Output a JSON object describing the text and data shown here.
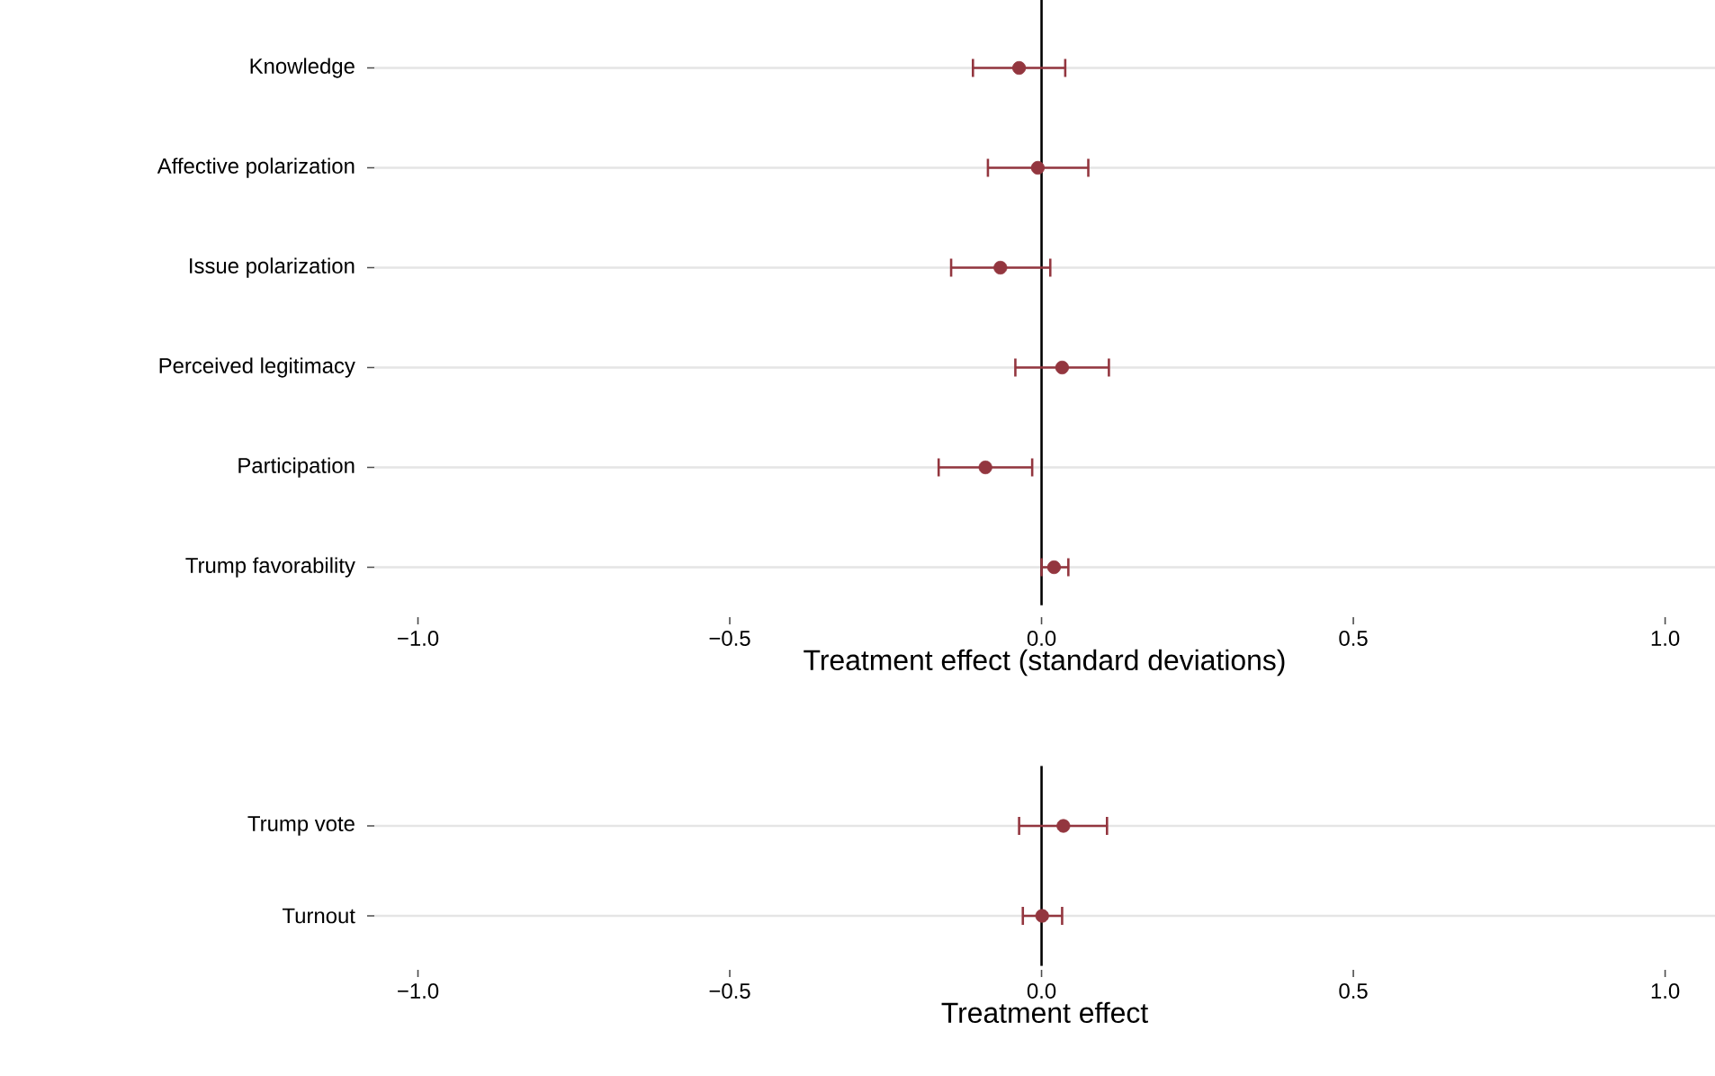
{
  "chart_data": [
    {
      "type": "scatter",
      "orientation": "horizontal",
      "categories": [
        "Knowledge",
        "Affective polarization",
        "Issue polarization",
        "Perceived legitimacy",
        "Participation",
        "Trump favorability"
      ],
      "values": [
        -0.036,
        -0.006,
        -0.066,
        0.033,
        -0.09,
        0.02
      ],
      "errors": [
        [
          -0.11,
          0.038
        ],
        [
          -0.086,
          0.075
        ],
        [
          -0.145,
          0.014
        ],
        [
          -0.042,
          0.108
        ],
        [
          -0.165,
          -0.015
        ],
        [
          0.0,
          0.043
        ]
      ],
      "color": "#93363f",
      "marker": "circle",
      "grid": "y",
      "xlim": [
        -1.07,
        1.08
      ],
      "xticks": [
        {
          "value": -1,
          "label": "−1.0"
        },
        {
          "value": -0.5,
          "label": "−0.5"
        },
        {
          "value": 0,
          "label": "0.0"
        },
        {
          "value": 0.5,
          "label": "0.5"
        },
        {
          "value": 1,
          "label": "1.0"
        }
      ],
      "xlabel": "Treatment effect (standard deviations)",
      "ref_lines": [
        {
          "axis": "x",
          "value": 0,
          "color": "#000000"
        }
      ]
    },
    {
      "type": "scatter",
      "orientation": "horizontal",
      "categories": [
        "Trump vote",
        "Turnout"
      ],
      "values": [
        0.035,
        0.001
      ],
      "errors": [
        [
          -0.036,
          0.105
        ],
        [
          -0.03,
          0.033
        ]
      ],
      "color": "#93363f",
      "marker": "circle",
      "grid": "y",
      "xlim": [
        -1.07,
        1.08
      ],
      "xticks": [
        {
          "value": -1,
          "label": "−1.0"
        },
        {
          "value": -0.5,
          "label": "−0.5"
        },
        {
          "value": 0,
          "label": "0.0"
        },
        {
          "value": 0.5,
          "label": "0.5"
        },
        {
          "value": 1,
          "label": "1.0"
        }
      ],
      "xlabel": "Treatment effect",
      "ref_lines": [
        {
          "axis": "x",
          "value": 0,
          "color": "#000000"
        }
      ]
    }
  ]
}
